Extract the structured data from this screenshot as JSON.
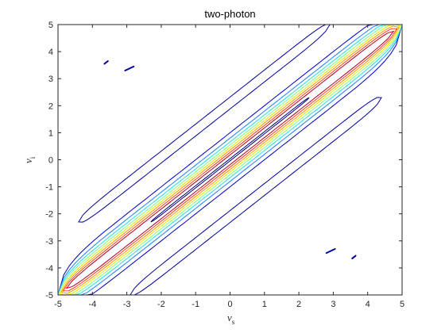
{
  "chart_data": {
    "type": "contour",
    "title": "two-photon",
    "xlabel": {
      "main": "v",
      "sub": "s"
    },
    "ylabel": {
      "main": "v",
      "sub": "i"
    },
    "xlim": [
      -5,
      5
    ],
    "ylim": [
      -5,
      5
    ],
    "xticks": [
      -5,
      -4,
      -3,
      -2,
      -1,
      0,
      1,
      2,
      3,
      4,
      5
    ],
    "yticks": [
      -5,
      -4,
      -3,
      -2,
      -1,
      0,
      1,
      2,
      3,
      4,
      5
    ],
    "grid": false,
    "colormap": "jet",
    "contours": [
      {
        "level": 1,
        "color": "#00007a",
        "orientation": "diagonal",
        "center_offset": 0,
        "x_range": [
          -2.3,
          2.3
        ],
        "half_width": 0.04
      },
      {
        "level": 2,
        "color": "#b8001f",
        "orientation": "diagonal",
        "center_offset": 0,
        "x_range": [
          -4.75,
          4.75
        ],
        "half_width": 0.18
      },
      {
        "level": 3,
        "color": "#ff4020",
        "orientation": "diagonal",
        "center_offset": 0,
        "x_range": [
          -4.85,
          4.85
        ],
        "half_width": 0.27
      },
      {
        "level": 4,
        "color": "#ff9a00",
        "orientation": "diagonal",
        "center_offset": 0,
        "x_range": [
          -4.9,
          4.9
        ],
        "half_width": 0.36
      },
      {
        "level": 5,
        "color": "#e6e600",
        "orientation": "diagonal",
        "center_offset": 0,
        "x_range": [
          -4.95,
          4.95
        ],
        "half_width": 0.45
      },
      {
        "level": 6,
        "color": "#80ff80",
        "orientation": "diagonal",
        "center_offset": 0,
        "x_range": [
          -5.0,
          5.0
        ],
        "half_width": 0.55
      },
      {
        "level": 7,
        "color": "#20e0e0",
        "orientation": "diagonal",
        "center_offset": 0,
        "x_range": [
          -5.0,
          5.0
        ],
        "half_width": 0.66
      },
      {
        "level": 8,
        "color": "#2080ff",
        "orientation": "diagonal",
        "center_offset": 0,
        "x_range": [
          -5.0,
          5.0
        ],
        "half_width": 0.8
      },
      {
        "level": 9,
        "color": "#0000c8",
        "orientation": "diagonal",
        "center_offset": 0,
        "x_range": [
          -5.0,
          5.0
        ],
        "half_width": 1.0
      },
      {
        "level": 10,
        "color": "#0000a0",
        "orientation": "side-band",
        "center_offset": 2.1,
        "x_range": [
          -4.4,
          2.9
        ],
        "half_width": 0.22
      },
      {
        "level": 11,
        "color": "#0000a0",
        "orientation": "side-band",
        "center_offset": -2.1,
        "x_range": [
          -2.9,
          4.4
        ],
        "half_width": 0.22
      }
    ],
    "islands": [
      {
        "color": "#0000a0",
        "x": [
          -3.65,
          -3.55
        ],
        "y": [
          3.55,
          3.65
        ]
      },
      {
        "color": "#0000a0",
        "x": [
          -3.05,
          -2.8
        ],
        "y": [
          3.3,
          3.45
        ]
      },
      {
        "color": "#0000a0",
        "x": [
          3.55,
          3.65
        ],
        "y": [
          -3.65,
          -3.55
        ]
      },
      {
        "color": "#0000a0",
        "x": [
          2.8,
          3.05
        ],
        "y": [
          -3.45,
          -3.3
        ]
      }
    ],
    "colors": {
      "axis": "#262626",
      "background": "#ffffff"
    }
  }
}
